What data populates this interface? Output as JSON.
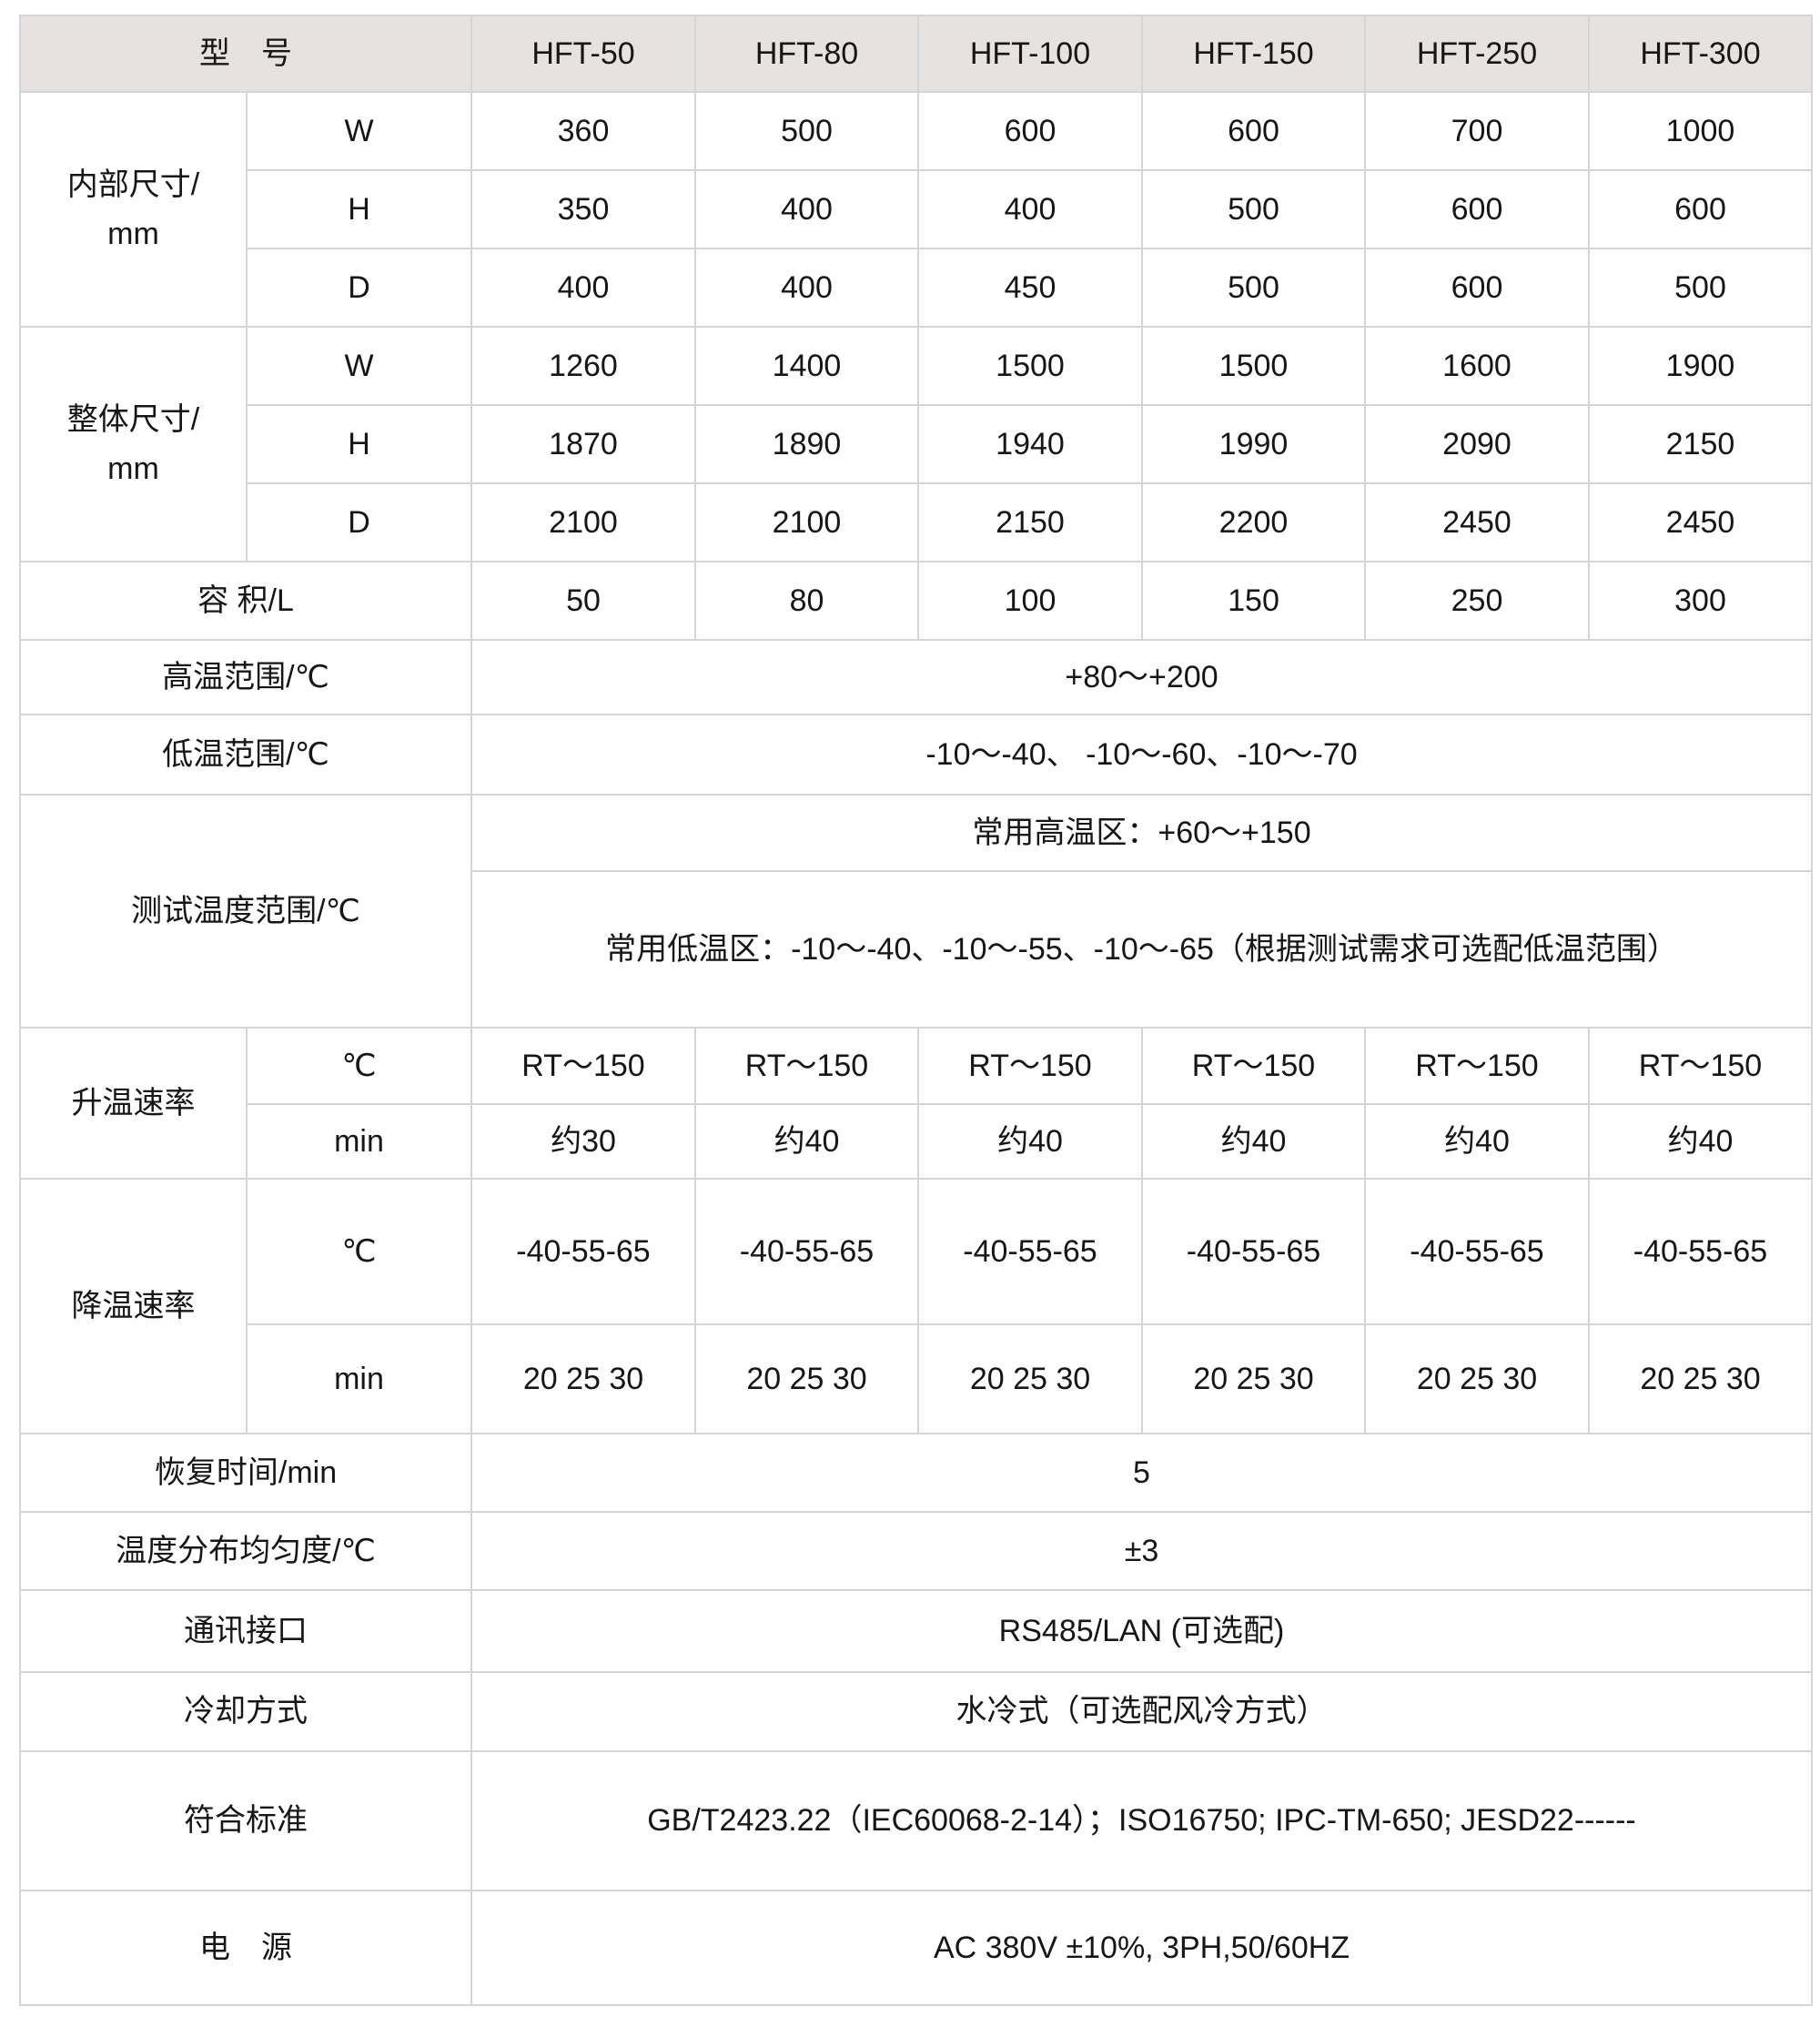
{
  "table": {
    "title": "HFT series specification table",
    "models": [
      "HFT-50",
      "HFT-80",
      "HFT-100",
      "HFT-150",
      "HFT-250",
      "HFT-300"
    ],
    "rows": [
      {
        "h": 84,
        "head": true,
        "cells": [
          {
            "t": "型　号",
            "c": 2,
            "lbl": 1
          },
          {
            "t": "HFT-50"
          },
          {
            "t": "HFT-80"
          },
          {
            "t": "HFT-100"
          },
          {
            "t": "HFT-150"
          },
          {
            "t": "HFT-250"
          },
          {
            "t": "HFT-300"
          }
        ]
      },
      {
        "h": 86,
        "cells": [
          {
            "t": "内部尺寸/\nmm",
            "r": 3,
            "lbl": 1
          },
          {
            "t": "W",
            "lbl": 1
          },
          "360",
          "500",
          "600",
          "600",
          "700",
          "1000"
        ]
      },
      {
        "h": 86,
        "cells": [
          {
            "t": "H",
            "lbl": 1
          },
          "350",
          "400",
          "400",
          "500",
          "600",
          "600"
        ]
      },
      {
        "h": 86,
        "cells": [
          {
            "t": "D",
            "lbl": 1
          },
          "400",
          "400",
          "450",
          "500",
          "600",
          "500"
        ]
      },
      {
        "h": 86,
        "cells": [
          {
            "t": "整体尺寸/\nmm",
            "r": 3,
            "lbl": 1
          },
          {
            "t": "W",
            "lbl": 1
          },
          "1260",
          "1400",
          "1500",
          "1500",
          "1600",
          "1900"
        ]
      },
      {
        "h": 86,
        "cells": [
          {
            "t": "H",
            "lbl": 1
          },
          "1870",
          "1890",
          "1940",
          "1990",
          "2090",
          "2150"
        ]
      },
      {
        "h": 86,
        "cells": [
          {
            "t": "D",
            "lbl": 1
          },
          "2100",
          "2100",
          "2150",
          "2200",
          "2450",
          "2450"
        ]
      },
      {
        "h": 86,
        "cells": [
          {
            "t": "容 积/L",
            "c": 2,
            "lbl": 1
          },
          "50",
          "80",
          "100",
          "150",
          "250",
          "300"
        ]
      },
      {
        "h": 82,
        "cells": [
          {
            "t": "高温范围/℃",
            "c": 2,
            "lbl": 1
          },
          {
            "t": "+80～+200",
            "c": 6
          }
        ]
      },
      {
        "h": 88,
        "cells": [
          {
            "t": "低温范围/℃",
            "c": 2,
            "lbl": 1
          },
          {
            "t": "-10～-40、 -10～-60、-10～-70",
            "c": 6
          }
        ]
      },
      {
        "h": 84,
        "cells": [
          {
            "t": "测试温度范围/℃",
            "c": 2,
            "r": 2,
            "lbl": 1
          },
          {
            "t": "常用高温区：+60～+150",
            "c": 6
          }
        ]
      },
      {
        "h": 172,
        "cells": [
          {
            "t": "常用低温区：-10～-40、-10～-55、-10～-65（根据测试需求可选配低温范围）",
            "c": 6
          }
        ]
      },
      {
        "h": 84,
        "cells": [
          {
            "t": "升温速率",
            "r": 2,
            "lbl": 1
          },
          {
            "t": "℃",
            "lbl": 1
          },
          "RT～150",
          "RT～150",
          "RT～150",
          "RT～150",
          "RT～150",
          "RT～150"
        ]
      },
      {
        "h": 82,
        "cells": [
          {
            "t": "min",
            "lbl": 1
          },
          "约30",
          "约40",
          "约40",
          "约40",
          "约40",
          "约40"
        ]
      },
      {
        "h": 160,
        "cells": [
          {
            "t": "降温速率",
            "r": 2,
            "lbl": 1
          },
          {
            "t": "℃",
            "lbl": 1
          },
          "-40-55-65",
          "-40-55-65",
          "-40-55-65",
          "-40-55-65",
          "-40-55-65",
          "-40-55-65"
        ]
      },
      {
        "h": 120,
        "cells": [
          {
            "t": "min",
            "lbl": 1
          },
          "20 25 30",
          "20 25 30",
          "20 25 30",
          "20 25 30",
          "20 25 30",
          "20 25 30"
        ]
      },
      {
        "h": 86,
        "cells": [
          {
            "t": "恢复时间/min",
            "c": 2,
            "lbl": 1
          },
          {
            "t": "5",
            "c": 6
          }
        ]
      },
      {
        "h": 86,
        "cells": [
          {
            "t": "温度分布均匀度/℃",
            "c": 2,
            "lbl": 1
          },
          {
            "t": "±3",
            "c": 6
          }
        ]
      },
      {
        "h": 90,
        "cells": [
          {
            "t": "通讯接口",
            "c": 2,
            "lbl": 1
          },
          {
            "t": "RS485/LAN (可选配)",
            "c": 6
          }
        ]
      },
      {
        "h": 87,
        "cells": [
          {
            "t": "冷却方式",
            "c": 2,
            "lbl": 1
          },
          {
            "t": "水冷式（可选配风冷方式）",
            "c": 6
          }
        ]
      },
      {
        "h": 153,
        "cells": [
          {
            "t": "符合标准",
            "c": 2,
            "lbl": 1
          },
          {
            "t": "GB/T2423.22（IEC60068-2-14）；ISO16750; IPC-TM-650; JESD22------",
            "c": 6
          }
        ]
      },
      {
        "h": 126,
        "cells": [
          {
            "t": "电　源",
            "c": 2,
            "lbl": 1
          },
          {
            "t": "AC 380V ±10%, 3PH,50/60HZ",
            "c": 6
          }
        ]
      }
    ],
    "colors": {
      "header_bg": "#e7e2e0",
      "grid_line": "#d2d5d9",
      "text": "#161616"
    }
  }
}
